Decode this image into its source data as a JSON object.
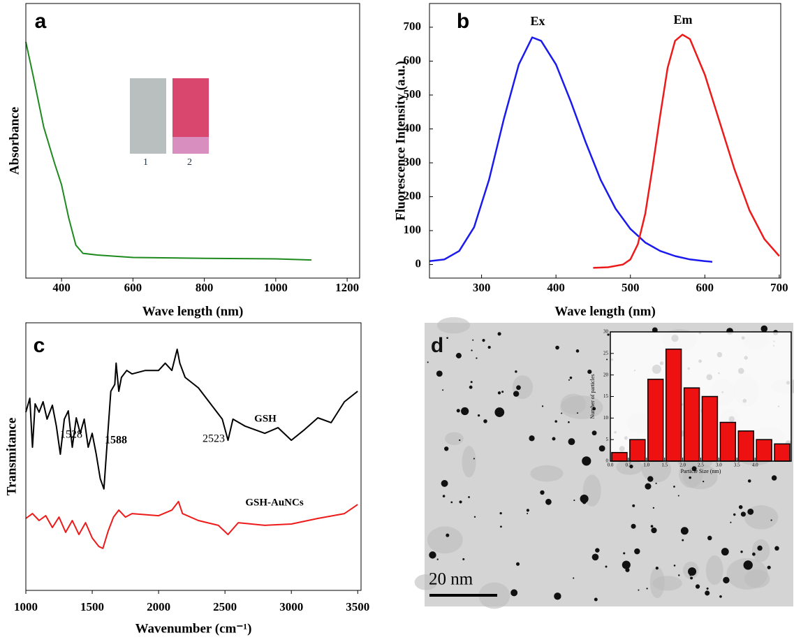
{
  "chart_data": [
    {
      "type": "line",
      "panel": "a",
      "x_label": "Wave length (nm)",
      "y_label": "Absorbance",
      "xlim": [
        300,
        1235
      ],
      "ylim": [
        0,
        1
      ],
      "xticks": [
        400,
        600,
        800,
        1000,
        1200
      ],
      "inset_labels": [
        "1",
        "2"
      ],
      "series": [
        {
          "color": "#1e8a1e",
          "x": [
            300,
            320,
            350,
            380,
            400,
            420,
            440,
            460,
            500,
            600,
            800,
            1000,
            1100
          ],
          "values": [
            0.86,
            0.74,
            0.55,
            0.42,
            0.34,
            0.22,
            0.12,
            0.09,
            0.084,
            0.075,
            0.072,
            0.07,
            0.066
          ]
        }
      ]
    },
    {
      "type": "line",
      "panel": "b",
      "x_label": "Wave length (nm)",
      "y_label": "Fluorescence Intensity (a.u.)",
      "xlim": [
        230,
        702
      ],
      "ylim": [
        -40,
        770
      ],
      "xticks": [
        300,
        400,
        500,
        600,
        700
      ],
      "yticks": [
        0,
        100,
        200,
        300,
        400,
        500,
        600,
        700
      ],
      "series": [
        {
          "name": "Ex",
          "color": "#1a1aee",
          "x": [
            230,
            250,
            270,
            290,
            310,
            330,
            350,
            368,
            380,
            400,
            420,
            440,
            460,
            480,
            500,
            520,
            540,
            560,
            580,
            600,
            610
          ],
          "values": [
            10,
            15,
            40,
            110,
            250,
            430,
            590,
            670,
            660,
            590,
            480,
            360,
            250,
            165,
            105,
            65,
            40,
            25,
            15,
            10,
            8
          ]
        },
        {
          "name": "Em",
          "color": "#ee1a1a",
          "x": [
            450,
            470,
            490,
            500,
            510,
            520,
            530,
            540,
            550,
            560,
            570,
            580,
            600,
            620,
            640,
            660,
            680,
            700
          ],
          "values": [
            -10,
            -8,
            0,
            15,
            60,
            150,
            290,
            440,
            580,
            660,
            678,
            665,
            560,
            420,
            280,
            160,
            75,
            25
          ]
        }
      ]
    },
    {
      "type": "line",
      "panel": "c",
      "x_label": "Wavenumber (cm⁻¹)",
      "y_label": "Transmitance",
      "xlim": [
        1000,
        3525
      ],
      "ylim": [
        0,
        1
      ],
      "xticks": [
        1000,
        1500,
        2000,
        2500,
        3000,
        3500
      ],
      "annotations": [
        "1528",
        "1588",
        "2523"
      ],
      "series": [
        {
          "name": "GSH",
          "color": "#000000",
          "x": [
            1000,
            1030,
            1050,
            1070,
            1100,
            1130,
            1160,
            1200,
            1230,
            1260,
            1290,
            1320,
            1350,
            1380,
            1410,
            1440,
            1470,
            1500,
            1530,
            1560,
            1588,
            1610,
            1640,
            1670,
            1680,
            1700,
            1720,
            1760,
            1800,
            1900,
            2000,
            2050,
            2100,
            2140,
            2160,
            2200,
            2300,
            2400,
            2480,
            2523,
            2560,
            2650,
            2800,
            2900,
            3000,
            3100,
            3200,
            3300,
            3350,
            3400,
            3500
          ],
          "values": [
            0.666,
            0.718,
            0.535,
            0.697,
            0.666,
            0.705,
            0.64,
            0.692,
            0.614,
            0.509,
            0.64,
            0.671,
            0.535,
            0.645,
            0.587,
            0.64,
            0.535,
            0.587,
            0.509,
            0.418,
            0.379,
            0.535,
            0.744,
            0.77,
            0.849,
            0.744,
            0.796,
            0.822,
            0.809,
            0.822,
            0.822,
            0.849,
            0.822,
            0.901,
            0.849,
            0.796,
            0.757,
            0.692,
            0.64,
            0.561,
            0.64,
            0.614,
            0.587,
            0.608,
            0.561,
            0.601,
            0.645,
            0.627,
            0.666,
            0.705,
            0.744
          ]
        },
        {
          "name": "GSH-AuNCs",
          "color": "#ee1a1a",
          "x": [
            1000,
            1050,
            1100,
            1150,
            1200,
            1250,
            1300,
            1350,
            1400,
            1450,
            1500,
            1550,
            1580,
            1620,
            1660,
            1700,
            1750,
            1800,
            2000,
            2100,
            2150,
            2180,
            2300,
            2450,
            2523,
            2600,
            2800,
            3000,
            3200,
            3400,
            3500
          ],
          "values": [
            0.269,
            0.287,
            0.261,
            0.279,
            0.235,
            0.274,
            0.217,
            0.261,
            0.209,
            0.253,
            0.196,
            0.164,
            0.157,
            0.222,
            0.274,
            0.3,
            0.274,
            0.287,
            0.279,
            0.3,
            0.332,
            0.287,
            0.261,
            0.243,
            0.209,
            0.253,
            0.243,
            0.248,
            0.269,
            0.287,
            0.321
          ]
        }
      ]
    },
    {
      "type": "histogram",
      "panel": "d",
      "scale_bar": "20 nm",
      "x_label": "Particle Size (nm)",
      "y_label": "Number of particles",
      "bins": [
        0,
        0.5,
        1,
        1.5,
        2,
        2.5,
        3,
        3.5,
        4,
        4.5,
        5
      ],
      "values": [
        2,
        5,
        19,
        26,
        17,
        15,
        9,
        7,
        5,
        4
      ],
      "color": "#ee1111",
      "xlim": [
        0,
        5
      ],
      "ylim": [
        0,
        30
      ],
      "xticks": [
        {
          "value": 0,
          "label": "0.0"
        },
        0.5,
        {
          "value": 1,
          "label": "1.0"
        },
        1.5,
        {
          "value": 2,
          "label": "2.0"
        },
        2.5,
        {
          "value": 3,
          "label": "3.0"
        },
        3.5,
        {
          "value": 4,
          "label": "4.0"
        }
      ],
      "yticks": [
        0,
        5,
        10,
        15,
        20,
        25,
        30
      ]
    }
  ]
}
